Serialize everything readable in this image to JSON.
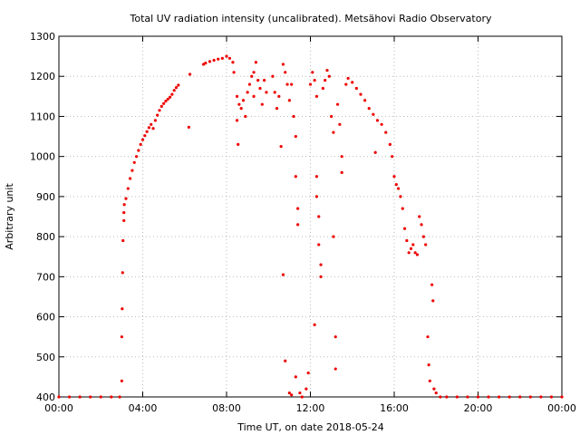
{
  "chart_data": {
    "type": "scatter",
    "title": "Total UV radiation intensity (uncalibrated). Metsähovi Radio Observatory",
    "xlabel": "Time UT, on date 2018-05-24",
    "ylabel": "Arbitrary unit",
    "xlim": [
      0,
      24
    ],
    "ylim": [
      400,
      1300
    ],
    "x_ticks": [
      0,
      4,
      8,
      12,
      16,
      20,
      24
    ],
    "x_tick_labels": [
      "00:00",
      "04:00",
      "08:00",
      "12:00",
      "16:00",
      "20:00",
      "00:00"
    ],
    "y_ticks": [
      400,
      500,
      600,
      700,
      800,
      900,
      1000,
      1100,
      1200,
      1300
    ],
    "y_tick_labels": [
      "400",
      "500",
      "600",
      "700",
      "800",
      "900",
      "1000",
      "1100",
      "1200",
      "1300"
    ],
    "grid": true,
    "marker_color": "#ee0000",
    "series": [
      {
        "points": [
          [
            0.0,
            400
          ],
          [
            0.5,
            400
          ],
          [
            1.0,
            400
          ],
          [
            1.5,
            400
          ],
          [
            2.0,
            400
          ],
          [
            2.5,
            400
          ],
          [
            2.9,
            400
          ],
          [
            3.0,
            440
          ],
          [
            3.0,
            550
          ],
          [
            3.02,
            620
          ],
          [
            3.04,
            710
          ],
          [
            3.06,
            790
          ],
          [
            3.1,
            840
          ],
          [
            3.1,
            860
          ],
          [
            3.12,
            880
          ],
          [
            3.2,
            895
          ],
          [
            3.3,
            920
          ],
          [
            3.4,
            945
          ],
          [
            3.5,
            965
          ],
          [
            3.6,
            985
          ],
          [
            3.7,
            1000
          ],
          [
            3.8,
            1015
          ],
          [
            3.9,
            1030
          ],
          [
            4.0,
            1042
          ],
          [
            4.1,
            1052
          ],
          [
            4.2,
            1062
          ],
          [
            4.3,
            1072
          ],
          [
            4.4,
            1080
          ],
          [
            4.5,
            1070
          ],
          [
            4.6,
            1090
          ],
          [
            4.7,
            1103
          ],
          [
            4.8,
            1115
          ],
          [
            4.9,
            1125
          ],
          [
            5.0,
            1132
          ],
          [
            5.1,
            1138
          ],
          [
            5.2,
            1143
          ],
          [
            5.3,
            1148
          ],
          [
            5.4,
            1155
          ],
          [
            5.5,
            1165
          ],
          [
            5.6,
            1172
          ],
          [
            5.7,
            1178
          ],
          [
            6.2,
            1073
          ],
          [
            6.25,
            1205
          ],
          [
            6.9,
            1230
          ],
          [
            7.0,
            1233
          ],
          [
            7.2,
            1237
          ],
          [
            7.4,
            1240
          ],
          [
            7.6,
            1243
          ],
          [
            7.8,
            1245
          ],
          [
            8.0,
            1250
          ],
          [
            8.15,
            1245
          ],
          [
            8.3,
            1235
          ],
          [
            8.35,
            1210
          ],
          [
            8.5,
            1150
          ],
          [
            8.5,
            1090
          ],
          [
            8.55,
            1030
          ],
          [
            8.6,
            1130
          ],
          [
            8.7,
            1120
          ],
          [
            8.8,
            1140
          ],
          [
            8.9,
            1100
          ],
          [
            9.0,
            1160
          ],
          [
            9.1,
            1180
          ],
          [
            9.2,
            1200
          ],
          [
            9.3,
            1210
          ],
          [
            9.3,
            1150
          ],
          [
            9.4,
            1235
          ],
          [
            9.5,
            1190
          ],
          [
            9.6,
            1170
          ],
          [
            9.7,
            1130
          ],
          [
            9.8,
            1190
          ],
          [
            9.9,
            1160
          ],
          [
            10.2,
            1200
          ],
          [
            10.3,
            1160
          ],
          [
            10.4,
            1120
          ],
          [
            10.5,
            1150
          ],
          [
            10.6,
            1025
          ],
          [
            10.7,
            1230
          ],
          [
            10.8,
            1210
          ],
          [
            10.9,
            1180
          ],
          [
            11.0,
            1140
          ],
          [
            11.1,
            1180
          ],
          [
            11.2,
            1100
          ],
          [
            11.3,
            1050
          ],
          [
            11.3,
            950
          ],
          [
            11.4,
            870
          ],
          [
            11.4,
            830
          ],
          [
            10.7,
            705
          ],
          [
            10.8,
            490
          ],
          [
            11.0,
            410
          ],
          [
            11.1,
            405
          ],
          [
            11.3,
            450
          ],
          [
            11.5,
            410
          ],
          [
            11.6,
            400
          ],
          [
            11.8,
            420
          ],
          [
            11.9,
            460
          ],
          [
            12.0,
            1180
          ],
          [
            12.1,
            1210
          ],
          [
            12.2,
            1190
          ],
          [
            12.2,
            580
          ],
          [
            12.3,
            1150
          ],
          [
            12.3,
            950
          ],
          [
            12.3,
            900
          ],
          [
            12.4,
            850
          ],
          [
            12.4,
            780
          ],
          [
            12.5,
            730
          ],
          [
            12.5,
            700
          ],
          [
            12.6,
            1170
          ],
          [
            12.7,
            1190
          ],
          [
            12.8,
            1215
          ],
          [
            12.9,
            1200
          ],
          [
            13.0,
            1100
          ],
          [
            13.1,
            1060
          ],
          [
            13.1,
            800
          ],
          [
            13.2,
            550
          ],
          [
            13.2,
            470
          ],
          [
            13.3,
            1130
          ],
          [
            13.4,
            1080
          ],
          [
            13.5,
            1000
          ],
          [
            13.5,
            960
          ],
          [
            13.7,
            1180
          ],
          [
            13.8,
            1195
          ],
          [
            14.0,
            1185
          ],
          [
            14.2,
            1170
          ],
          [
            14.4,
            1155
          ],
          [
            14.6,
            1140
          ],
          [
            14.8,
            1120
          ],
          [
            15.0,
            1105
          ],
          [
            15.1,
            1010
          ],
          [
            15.2,
            1090
          ],
          [
            15.4,
            1080
          ],
          [
            15.6,
            1060
          ],
          [
            15.8,
            1030
          ],
          [
            15.9,
            1000
          ],
          [
            16.0,
            950
          ],
          [
            16.1,
            930
          ],
          [
            16.2,
            920
          ],
          [
            16.3,
            900
          ],
          [
            16.4,
            870
          ],
          [
            16.5,
            820
          ],
          [
            16.6,
            790
          ],
          [
            16.7,
            760
          ],
          [
            16.8,
            770
          ],
          [
            16.9,
            780
          ],
          [
            17.0,
            760
          ],
          [
            17.1,
            755
          ],
          [
            17.2,
            850
          ],
          [
            17.3,
            830
          ],
          [
            17.4,
            800
          ],
          [
            17.5,
            780
          ],
          [
            17.6,
            550
          ],
          [
            17.65,
            480
          ],
          [
            17.7,
            440
          ],
          [
            17.8,
            680
          ],
          [
            17.85,
            640
          ],
          [
            17.9,
            420
          ],
          [
            18.0,
            410
          ],
          [
            18.2,
            400
          ],
          [
            18.5,
            400
          ],
          [
            19.0,
            400
          ],
          [
            19.5,
            400
          ],
          [
            20.0,
            400
          ],
          [
            20.5,
            400
          ],
          [
            21.0,
            400
          ],
          [
            21.5,
            400
          ],
          [
            22.0,
            400
          ],
          [
            22.5,
            400
          ],
          [
            23.0,
            400
          ],
          [
            23.5,
            400
          ],
          [
            24.0,
            400
          ]
        ]
      }
    ]
  }
}
